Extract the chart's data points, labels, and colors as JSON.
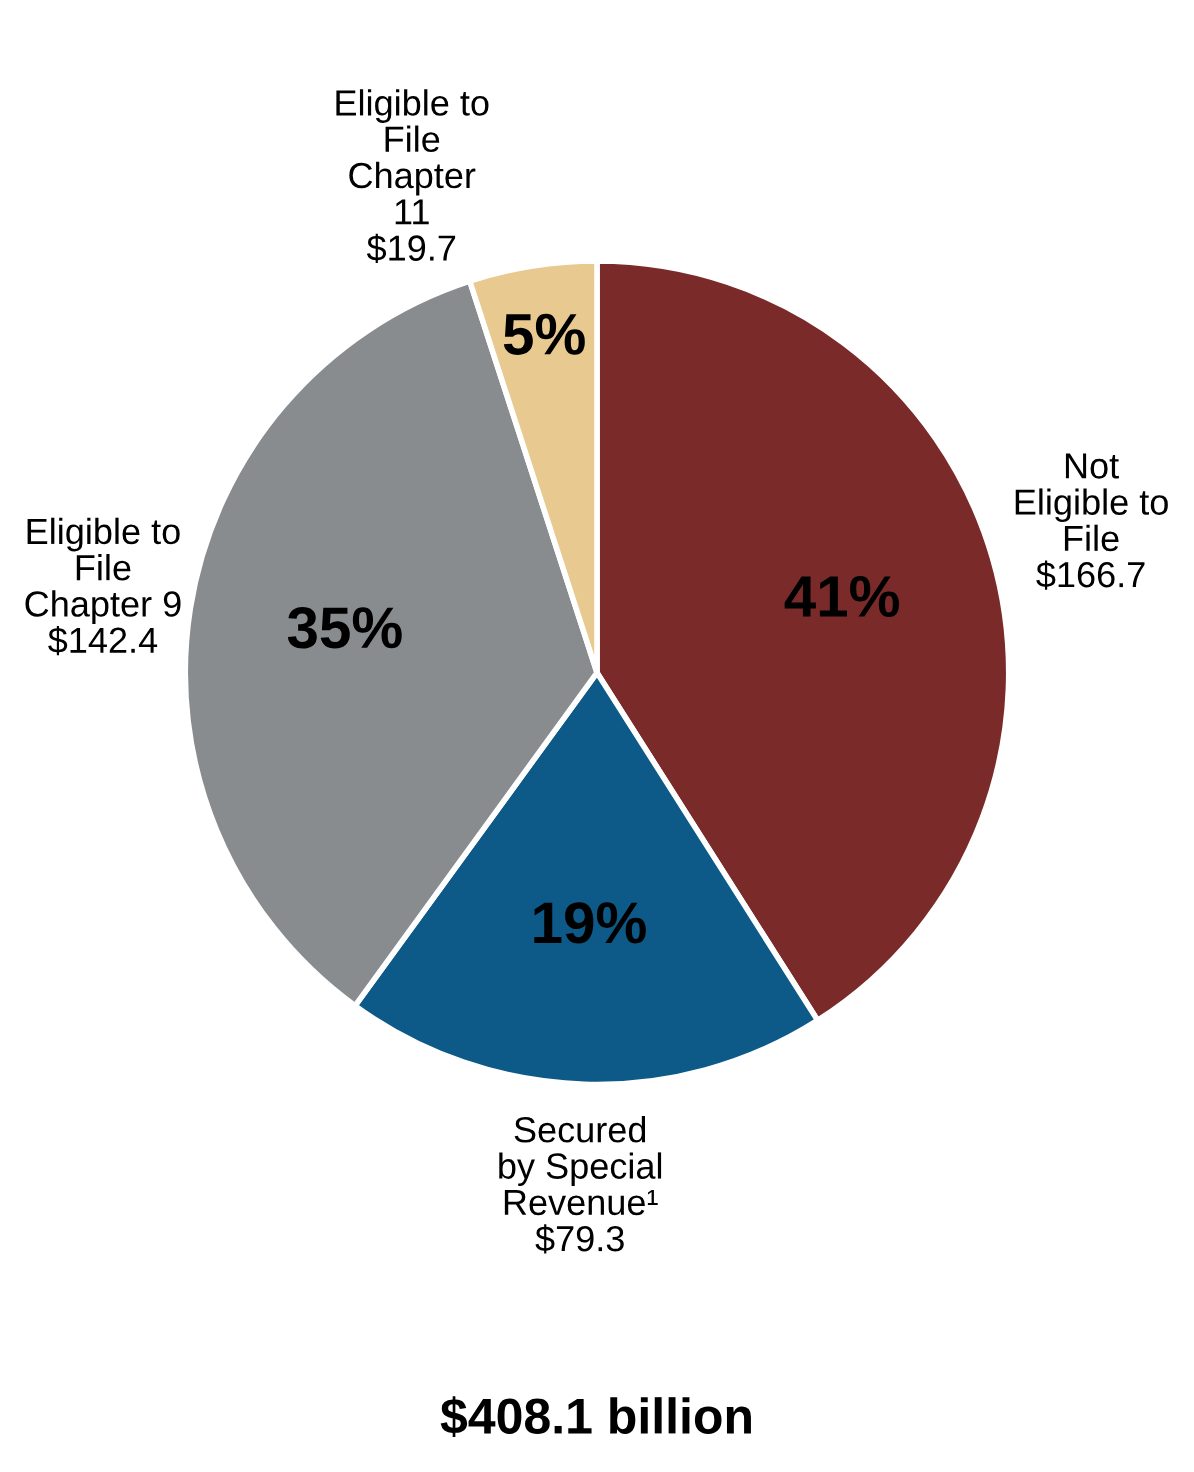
{
  "chart_data": {
    "type": "pie",
    "xlabel": "$408.1 billion",
    "categories": [
      "Not\nEligible to\nFile\n$166.7",
      "Secured\nby Special\nRevenue¹\n$79.3",
      "Eligible to\nFile\nChapter 9\n$142.4",
      "Eligible to\nFile\nChapter\n11\n$19.7"
    ],
    "values": [
      41,
      19,
      35,
      5
    ],
    "value_labels": [
      "41%",
      "19%",
      "35%",
      "5%"
    ],
    "colors": [
      "#7b2a2a",
      "#0d5a88",
      "#898c8f",
      "#e8c98f"
    ]
  }
}
